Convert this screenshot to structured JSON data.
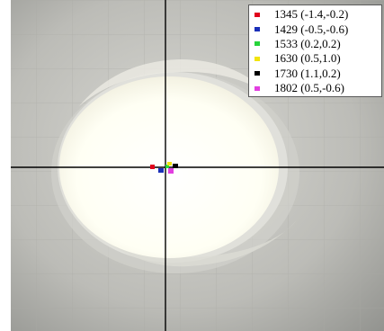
{
  "legend": {
    "items": [
      {
        "label": "1345 (-1.4,-0.2)",
        "color": "#e0001c"
      },
      {
        "label": "1429 (-0.5,-0.6)",
        "color": "#1a2fb8"
      },
      {
        "label": "1533 (0.2,0.2)",
        "color": "#27d43a"
      },
      {
        "label": "1630 (0.5,1.0)",
        "color": "#f2e40c"
      },
      {
        "label": "1730 (1.1,0.2)",
        "color": "#000000"
      },
      {
        "label": "1802 (0.5,-0.6)",
        "color": "#e23fe0"
      }
    ]
  },
  "colors": {
    "background": "#c4c4c0",
    "droplet": "#fffff6",
    "crosshair": "#000000",
    "legend_border": "#5a5a5a"
  }
}
